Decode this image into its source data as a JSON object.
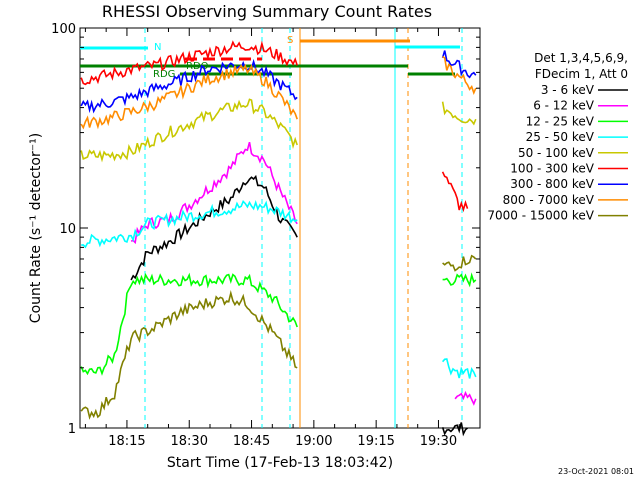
{
  "chart_data": {
    "type": "line",
    "title": "RHESSI Observing Summary Count Rates",
    "xlabel": "Start Time (17-Feb-13 18:03:42)",
    "ylabel": "Count Rate (s⁻¹ detector⁻¹)",
    "yscale": "log",
    "ylim": [
      1,
      100
    ],
    "xlim": [
      "18:03:42",
      "19:40:00"
    ],
    "x_ticks": [
      "18:15",
      "18:30",
      "18:45",
      "19:00",
      "19:15",
      "19:30"
    ],
    "y_ticks": [
      "1",
      "10",
      "100"
    ],
    "grid": false,
    "legend": {
      "placement": "right",
      "header": [
        "Det 1,3,4,5,6,9,",
        "FDecim 1, Att 0"
      ],
      "entries": [
        "3 - 6 keV",
        "6 - 12 keV",
        "12 - 25 keV",
        "25 - 50 keV",
        "50 - 100 keV",
        "100 - 300 keV",
        "300 - 800 keV",
        "800 - 7000 keV",
        "7000 - 15000 keV"
      ]
    },
    "flag_labels": [
      "N",
      "S",
      "RDO",
      "RDG"
    ],
    "series": [
      {
        "name": "3 - 6 keV",
        "color": "#000000",
        "seg1": {
          "x": [
            "18:16",
            "18:20",
            "18:25",
            "18:30",
            "18:35",
            "18:40",
            "18:44",
            "18:48",
            "18:52",
            "18:56"
          ],
          "y": [
            5.5,
            7.5,
            8.5,
            10,
            12,
            14,
            18,
            16,
            11,
            9
          ]
        },
        "seg2": {
          "x": [
            "19:31",
            "19:34",
            "19:37"
          ],
          "y": [
            1,
            1,
            1
          ]
        }
      },
      {
        "name": "6 - 12 keV",
        "color": "#ff00ff",
        "seg1": {
          "x": [
            "18:16",
            "18:20",
            "18:25",
            "18:30",
            "18:35",
            "18:40",
            "18:44",
            "18:48",
            "18:52",
            "18:56"
          ],
          "y": [
            8.5,
            10.5,
            11,
            13,
            16,
            20,
            26,
            22,
            15,
            10.5
          ]
        },
        "seg2": {
          "x": [
            "19:34",
            "19:37",
            "19:39"
          ],
          "y": [
            1.4,
            1.4,
            1.4
          ]
        }
      },
      {
        "name": "12 - 25 keV",
        "color": "#00ff00",
        "seg1": {
          "x": [
            "18:04",
            "18:08",
            "18:12",
            "18:16",
            "18:22",
            "18:28",
            "18:34",
            "18:40",
            "18:44",
            "18:50",
            "18:56"
          ],
          "y": [
            1.9,
            1.9,
            2.3,
            5.5,
            5.5,
            5.5,
            5.5,
            5.5,
            5.5,
            4.5,
            3.2
          ]
        },
        "seg2": {
          "x": [
            "19:31",
            "19:34",
            "19:37",
            "19:39"
          ],
          "y": [
            5.5,
            5.5,
            5.5,
            5.5
          ]
        }
      },
      {
        "name": "25 - 50 keV",
        "color": "#00ffff",
        "seg1": {
          "x": [
            "18:04",
            "18:10",
            "18:16",
            "18:20",
            "18:25",
            "18:30",
            "18:35",
            "18:40",
            "18:44",
            "18:48",
            "18:52",
            "18:56"
          ],
          "y": [
            8.5,
            8.8,
            9.2,
            10.5,
            11,
            11.5,
            12,
            12.5,
            13,
            12.8,
            12,
            11
          ]
        },
        "seg2": {
          "x": [
            "19:31",
            "19:33",
            "19:35",
            "19:37",
            "19:39"
          ],
          "y": [
            2.3,
            2,
            1.9,
            1.9,
            1.8
          ]
        }
      },
      {
        "name": "50 - 100 keV",
        "color": "#c8c800",
        "seg1": {
          "x": [
            "18:04",
            "18:10",
            "18:16",
            "18:22",
            "18:28",
            "18:34",
            "18:40",
            "18:44",
            "18:48",
            "18:52",
            "18:56"
          ],
          "y": [
            23,
            23,
            24,
            28,
            32,
            36,
            40,
            42,
            38,
            32,
            26
          ]
        },
        "seg2": {
          "x": [
            "19:31",
            "19:33",
            "19:35",
            "19:37",
            "19:39"
          ],
          "y": [
            40,
            38,
            36,
            35,
            35
          ]
        }
      },
      {
        "name": "100 - 300 keV",
        "color": "#ff0000",
        "seg1": {
          "x": [
            "18:04",
            "18:10",
            "18:16",
            "18:22",
            "18:28",
            "18:34",
            "18:40",
            "18:44",
            "18:48",
            "18:52",
            "18:56"
          ],
          "y": [
            55,
            58,
            62,
            65,
            70,
            75,
            80,
            82,
            78,
            72,
            65
          ]
        },
        "seg2": {
          "x": [
            "19:31",
            "19:33",
            "19:35",
            "19:37"
          ],
          "y": [
            20,
            16,
            13,
            12.5
          ]
        }
      },
      {
        "name": "300 - 800 keV",
        "color": "#0000ff",
        "seg1": {
          "x": [
            "18:04",
            "18:10",
            "18:16",
            "18:22",
            "18:28",
            "18:34",
            "18:40",
            "18:44",
            "18:48",
            "18:52",
            "18:56"
          ],
          "y": [
            40,
            42,
            45,
            50,
            55,
            62,
            65,
            66,
            60,
            52,
            45
          ]
        },
        "seg2": {
          "x": [
            "19:31",
            "19:33",
            "19:35",
            "19:37",
            "19:39"
          ],
          "y": [
            75,
            68,
            64,
            60,
            58
          ]
        }
      },
      {
        "name": "800 - 7000 keV",
        "color": "#ff8c00",
        "seg1": {
          "x": [
            "18:04",
            "18:10",
            "18:16",
            "18:22",
            "18:28",
            "18:34",
            "18:40",
            "18:44",
            "18:48",
            "18:52",
            "18:56"
          ],
          "y": [
            33,
            35,
            38,
            42,
            48,
            55,
            60,
            62,
            55,
            45,
            35
          ]
        },
        "seg2": {
          "x": [
            "19:31",
            "19:33",
            "19:35",
            "19:37",
            "19:39"
          ],
          "y": [
            68,
            62,
            57,
            53,
            50
          ]
        }
      },
      {
        "name": "7000 - 15000 keV",
        "color": "#808000",
        "seg1": {
          "x": [
            "18:04",
            "18:08",
            "18:12",
            "18:16",
            "18:22",
            "18:28",
            "18:34",
            "18:40",
            "18:44",
            "18:50",
            "18:56"
          ],
          "y": [
            1.2,
            1.2,
            1.5,
            2.8,
            3.2,
            3.8,
            4.2,
            4.5,
            4.2,
            3,
            2
          ]
        },
        "seg2": {
          "x": [
            "19:31",
            "19:34",
            "19:37",
            "19:39"
          ],
          "y": [
            6.5,
            6.5,
            7,
            7
          ]
        }
      }
    ]
  },
  "footer": {
    "date_stamp": "23-Oct-2021 08:01"
  }
}
